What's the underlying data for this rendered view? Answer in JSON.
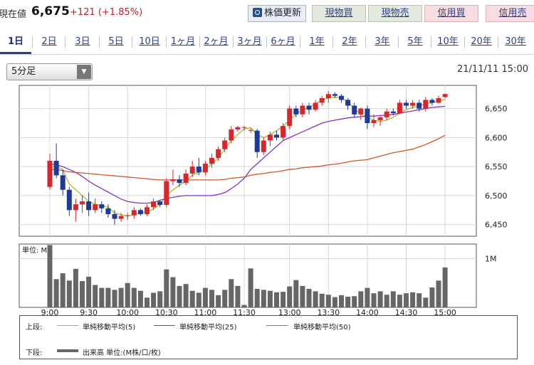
{
  "header": {
    "price_label": "現在値",
    "price_value": "6,675",
    "price_change": "+121 (+1.85%)",
    "refresh_label": "株価更新",
    "buttons": [
      "現物買",
      "現物売",
      "信用買",
      "信用売"
    ],
    "colors": {
      "up": "#c2202a",
      "accent": "#2d3f8a"
    }
  },
  "tabs": [
    "1日",
    "2日",
    "3日",
    "5日",
    "10日",
    "1ヶ月",
    "2ヶ月",
    "3ヶ月",
    "6ヶ月",
    "1年",
    "2年",
    "3年",
    "5年",
    "10年",
    "20年",
    "30年"
  ],
  "active_tab": "1日",
  "interval": {
    "selected": "5分足",
    "arrow_icon": "triangle-down-icon"
  },
  "timestamp": "21/11/11 15:00",
  "legend": {
    "upper_label": "上段:",
    "lower_label": "下段:",
    "ma5": "単純移動平均(5)",
    "ma25": "単純移動平均(25)",
    "ma50": "単純移動平均(50)",
    "volume": "出来高 単位:(M株/口/枚)",
    "colors": {
      "ma5": "#a8b832",
      "ma25": "#8a2fc4",
      "ma50": "#d4562b",
      "volume": "#666666"
    }
  },
  "chart_data": [
    {
      "type": "candlestick",
      "title": "",
      "ylim": [
        6430,
        6690
      ],
      "yticks": [
        6450,
        6500,
        6550,
        6600,
        6650
      ],
      "ytick_labels": [
        "6,450",
        "6,500",
        "6,550",
        "6,600",
        "6,650"
      ],
      "xticks": [
        "9:00",
        "9:30",
        "10:00",
        "10:30",
        "11:00",
        "11:30",
        "13:00",
        "13:30",
        "14:00",
        "14:30",
        "15:00"
      ],
      "grid": true,
      "colors": {
        "up": "#d7262e",
        "down": "#1f3a93"
      },
      "x": [
        "9:00",
        "9:05",
        "9:10",
        "9:15",
        "9:20",
        "9:25",
        "9:30",
        "9:35",
        "9:40",
        "9:45",
        "9:50",
        "9:55",
        "10:00",
        "10:05",
        "10:10",
        "10:15",
        "10:20",
        "10:25",
        "10:30",
        "10:35",
        "10:40",
        "10:45",
        "10:50",
        "10:55",
        "11:00",
        "11:05",
        "11:10",
        "11:15",
        "11:20",
        "11:25",
        "11:30",
        "12:30",
        "12:35",
        "12:40",
        "12:45",
        "12:50",
        "12:55",
        "13:00",
        "13:05",
        "13:10",
        "13:15",
        "13:20",
        "13:25",
        "13:30",
        "13:35",
        "13:40",
        "13:45",
        "13:50",
        "13:55",
        "14:00",
        "14:05",
        "14:10",
        "14:15",
        "14:20",
        "14:25",
        "14:30",
        "14:35",
        "14:40",
        "14:45",
        "14:50",
        "14:55",
        "15:00"
      ],
      "ohlc": [
        [
          6515,
          6572,
          6510,
          6560
        ],
        [
          6560,
          6590,
          6530,
          6535
        ],
        [
          6535,
          6545,
          6500,
          6510
        ],
        [
          6510,
          6515,
          6465,
          6475
        ],
        [
          6475,
          6495,
          6455,
          6485
        ],
        [
          6485,
          6500,
          6470,
          6490
        ],
        [
          6490,
          6505,
          6465,
          6475
        ],
        [
          6475,
          6495,
          6470,
          6485
        ],
        [
          6485,
          6490,
          6470,
          6478
        ],
        [
          6478,
          6485,
          6462,
          6468
        ],
        [
          6468,
          6475,
          6450,
          6460
        ],
        [
          6460,
          6470,
          6455,
          6465
        ],
        [
          6465,
          6470,
          6458,
          6466
        ],
        [
          6466,
          6480,
          6460,
          6475
        ],
        [
          6475,
          6478,
          6465,
          6468
        ],
        [
          6468,
          6485,
          6465,
          6480
        ],
        [
          6480,
          6495,
          6475,
          6490
        ],
        [
          6490,
          6492,
          6480,
          6484
        ],
        [
          6484,
          6530,
          6480,
          6525
        ],
        [
          6525,
          6545,
          6518,
          6528
        ],
        [
          6528,
          6535,
          6515,
          6522
        ],
        [
          6522,
          6545,
          6518,
          6538
        ],
        [
          6538,
          6560,
          6532,
          6550
        ],
        [
          6550,
          6565,
          6535,
          6540
        ],
        [
          6540,
          6560,
          6535,
          6555
        ],
        [
          6555,
          6572,
          6548,
          6565
        ],
        [
          6565,
          6585,
          6560,
          6580
        ],
        [
          6580,
          6600,
          6575,
          6595
        ],
        [
          6595,
          6620,
          6590,
          6614
        ],
        [
          6614,
          6620,
          6610,
          6618
        ],
        [
          6618,
          6620,
          6612,
          6618
        ],
        [
          6612,
          6616,
          6608,
          6613
        ],
        [
          6612,
          6615,
          6565,
          6575
        ],
        [
          6575,
          6600,
          6570,
          6595
        ],
        [
          6595,
          6610,
          6585,
          6605
        ],
        [
          6605,
          6612,
          6595,
          6600
        ],
        [
          6600,
          6625,
          6595,
          6620
        ],
        [
          6620,
          6655,
          6615,
          6650
        ],
        [
          6650,
          6655,
          6635,
          6640
        ],
        [
          6640,
          6660,
          6635,
          6655
        ],
        [
          6655,
          6660,
          6640,
          6648
        ],
        [
          6648,
          6665,
          6645,
          6660
        ],
        [
          6660,
          6672,
          6655,
          6668
        ],
        [
          6668,
          6680,
          6660,
          6675
        ],
        [
          6675,
          6678,
          6668,
          6672
        ],
        [
          6672,
          6675,
          6660,
          6665
        ],
        [
          6665,
          6668,
          6648,
          6655
        ],
        [
          6655,
          6660,
          6635,
          6640
        ],
        [
          6640,
          6652,
          6630,
          6650
        ],
        [
          6650,
          6655,
          6615,
          6625
        ],
        [
          6625,
          6640,
          6618,
          6630
        ],
        [
          6630,
          6638,
          6620,
          6635
        ],
        [
          6635,
          6650,
          6630,
          6645
        ],
        [
          6645,
          6650,
          6638,
          6642
        ],
        [
          6642,
          6665,
          6640,
          6660
        ],
        [
          6660,
          6665,
          6650,
          6655
        ],
        [
          6655,
          6665,
          6650,
          6660
        ],
        [
          6660,
          6665,
          6645,
          6650
        ],
        [
          6650,
          6670,
          6645,
          6665
        ],
        [
          6665,
          6668,
          6655,
          6660
        ],
        [
          6660,
          6672,
          6658,
          6668
        ],
        [
          6670,
          6676,
          6668,
          6675
        ]
      ],
      "series": [
        {
          "name": "単純移動平均(5)",
          "values": [
            6550,
            6550,
            6545,
            6520,
            6510,
            6500,
            6490,
            6485,
            6483,
            6480,
            6470,
            6467,
            6465,
            6467,
            6470,
            6472,
            6477,
            6485,
            6500,
            6510,
            6518,
            6525,
            6535,
            6540,
            6545,
            6555,
            6565,
            6580,
            6595,
            6605,
            6615,
            6617,
            6605,
            6600,
            6605,
            6612,
            6620,
            6630,
            6640,
            6648,
            6652,
            6658,
            6665,
            6668,
            6670,
            6668,
            6662,
            6650,
            6640,
            6635,
            6630,
            6628,
            6630,
            6635,
            6642,
            6648,
            6652,
            6655,
            6658,
            6660,
            6663,
            6666
          ]
        },
        {
          "name": "単純移動平均(25)",
          "values": [
            6555,
            6553,
            6550,
            6545,
            6540,
            6533,
            6525,
            6518,
            6512,
            6506,
            6500,
            6494,
            6490,
            6488,
            6487,
            6487,
            6488,
            6492,
            6495,
            6497,
            6499,
            6500,
            6500,
            6500,
            6500,
            6500,
            6502,
            6505,
            6512,
            6520,
            6530,
            6545,
            6555,
            6565,
            6575,
            6585,
            6595,
            6600,
            6605,
            6610,
            6615,
            6620,
            6625,
            6628,
            6630,
            6632,
            6634,
            6635,
            6636,
            6637,
            6637,
            6638,
            6639,
            6640,
            6642,
            6644,
            6646,
            6648,
            6650,
            6652,
            6653,
            6654
          ]
        },
        {
          "name": "単純移動平均(50)",
          "values": [
            6545,
            6545,
            6543,
            6541,
            6540,
            6539,
            6538,
            6537,
            6536,
            6535,
            6534,
            6533,
            6532,
            6531,
            6530,
            6529,
            6528,
            6527,
            6527,
            6527,
            6527,
            6527,
            6527,
            6527,
            6527,
            6527,
            6527,
            6528,
            6530,
            6531,
            6532,
            6535,
            6537,
            6538,
            6540,
            6541,
            6543,
            6545,
            6546,
            6548,
            6549,
            6550,
            6551,
            6553,
            6554,
            6556,
            6558,
            6560,
            6561,
            6562,
            6565,
            6568,
            6571,
            6574,
            6576,
            6578,
            6580,
            6584,
            6588,
            6593,
            6598,
            6604
          ]
        }
      ]
    },
    {
      "type": "bar",
      "title": "",
      "ylabel": "単位: M",
      "yticks": [
        1
      ],
      "ytick_labels": [
        "1M"
      ],
      "ylim": [
        0,
        1.3
      ],
      "x": [
        "9:00",
        "9:05",
        "9:10",
        "9:15",
        "9:20",
        "9:25",
        "9:30",
        "9:35",
        "9:40",
        "9:45",
        "9:50",
        "9:55",
        "10:00",
        "10:05",
        "10:10",
        "10:15",
        "10:20",
        "10:25",
        "10:30",
        "10:35",
        "10:40",
        "10:45",
        "10:50",
        "10:55",
        "11:00",
        "11:05",
        "11:10",
        "11:15",
        "11:20",
        "11:25",
        "11:30",
        "12:30",
        "12:35",
        "12:40",
        "12:45",
        "12:50",
        "12:55",
        "13:00",
        "13:05",
        "13:10",
        "13:15",
        "13:20",
        "13:25",
        "13:30",
        "13:35",
        "13:40",
        "13:45",
        "13:50",
        "13:55",
        "14:00",
        "14:05",
        "14:10",
        "14:15",
        "14:20",
        "14:25",
        "14:30",
        "14:35",
        "14:40",
        "14:45",
        "14:50",
        "14:55",
        "15:00"
      ],
      "values": [
        1.28,
        0.58,
        0.7,
        0.55,
        0.79,
        0.54,
        0.63,
        0.46,
        0.4,
        0.4,
        0.36,
        0.4,
        0.5,
        0.4,
        0.34,
        0.2,
        0.3,
        0.33,
        0.78,
        0.62,
        0.44,
        0.48,
        0.34,
        0.3,
        0.4,
        0.36,
        0.25,
        0.36,
        0.58,
        0.44,
        0.05,
        0.8,
        0.38,
        0.36,
        0.34,
        0.31,
        0.32,
        0.43,
        0.56,
        0.44,
        0.38,
        0.33,
        0.28,
        0.26,
        0.21,
        0.25,
        0.22,
        0.23,
        0.33,
        0.4,
        0.29,
        0.33,
        0.26,
        0.33,
        0.26,
        0.29,
        0.31,
        0.29,
        0.2,
        0.41,
        0.55,
        0.82
      ]
    }
  ]
}
